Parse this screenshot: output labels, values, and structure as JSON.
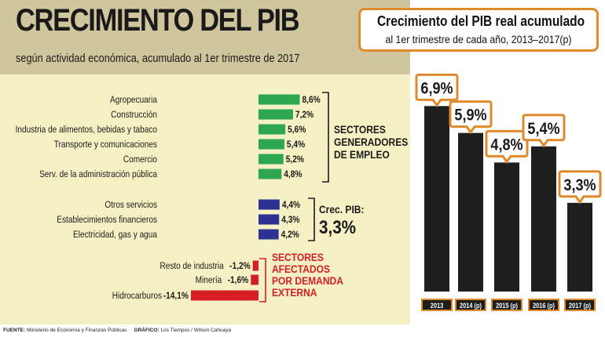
{
  "title": "CRECIMIENTO DEL PIB",
  "subtitle": "según actividad económica, acumulado al 1er trimestre de 2017",
  "footer": {
    "source_label": "FUENTE:",
    "source": "Ministerio de Economía y Finanzas Públicas",
    "graphic_label": "GRÁFICO:",
    "graphic": "Los Tiempos / Wilson Cahuaya"
  },
  "colors": {
    "green": "#2ea84f",
    "blue": "#2e3192",
    "red": "#d71e25",
    "orange": "#e08a2c",
    "dark_bar": "#1e1e1e",
    "panel": "#f6f1c4",
    "header": "#d0c69e"
  },
  "chart_data": [
    {
      "type": "bar",
      "orientation": "horizontal",
      "categories": [
        "Agropecuaria",
        "Construcción",
        "Industria de alimentos, bebidas y tabaco",
        "Transporte y comunicaciones",
        "Comercio",
        "Serv. de la administración pública",
        "Otros servicios",
        "Establecimientos financieros",
        "Electricidad, gas y agua",
        "Resto de industria",
        "Minería",
        "Hidrocarburos"
      ],
      "values": [
        8.6,
        7.2,
        5.6,
        5.4,
        5.2,
        4.8,
        4.4,
        4.3,
        4.2,
        -1.2,
        -1.6,
        -14.1
      ],
      "value_labels": [
        "8,6%",
        "7,2%",
        "5,6%",
        "5,4%",
        "5,2%",
        "4,8%",
        "4,4%",
        "4,3%",
        "4,2%",
        "-1,2%",
        "-1,6%",
        "-14,1%"
      ],
      "groups": [
        {
          "label_lines": [
            "SECTORES",
            "GENERADORES",
            "DE EMPLEO"
          ],
          "color": "green",
          "count": 6
        },
        {
          "label_lines": [
            "Crec. PIB:",
            "3,3%"
          ],
          "color": "blue",
          "count": 3
        },
        {
          "label_lines": [
            "SECTORES",
            "AFECTADOS",
            "POR DEMANDA",
            "EXTERNA"
          ],
          "color": "red",
          "count": 3
        }
      ]
    },
    {
      "type": "bar",
      "title": "Crecimiento del PIB real acumulado",
      "subtitle": "al 1er trimestre de cada año, 2013–2017(p)",
      "categories": [
        "2013",
        "2014 (p)",
        "2015 (p)",
        "2016 (p)",
        "2017 (p)"
      ],
      "values": [
        6.9,
        5.9,
        4.8,
        5.4,
        3.3
      ],
      "value_labels": [
        "6,9%",
        "5,9%",
        "4,8%",
        "5,4%",
        "3,3%"
      ]
    }
  ]
}
